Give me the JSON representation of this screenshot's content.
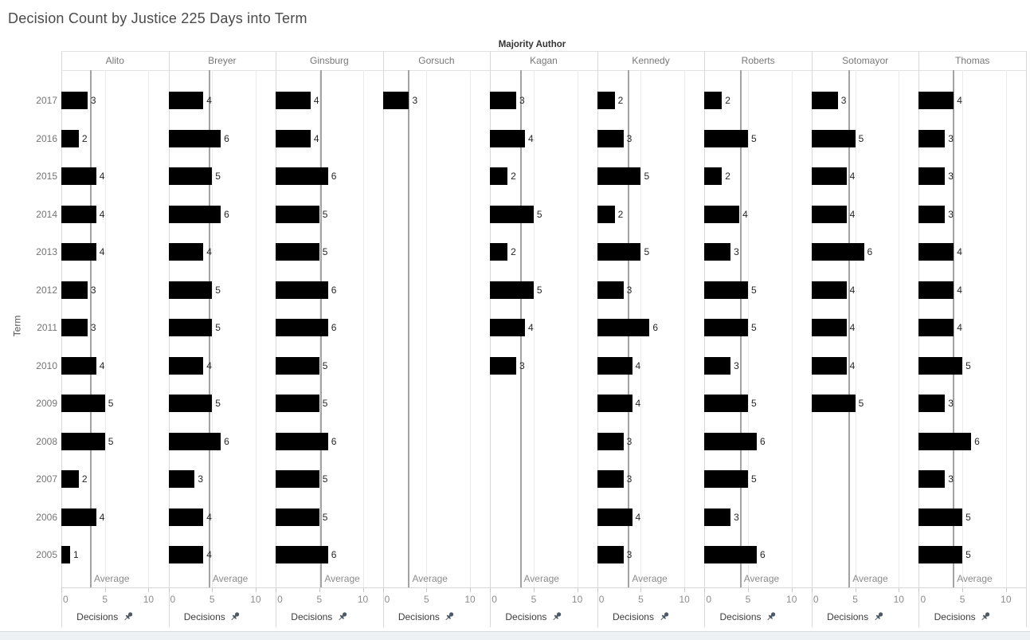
{
  "title": "Decision Count by Justice 225 Days into Term",
  "chart_data": {
    "type": "bar",
    "orientation": "horizontal",
    "title": "Decision Count by Justice 225 Days into Term",
    "column_field": "Majority Author",
    "row_field": "Term",
    "rows": [
      "2017",
      "2016",
      "2015",
      "2014",
      "2013",
      "2012",
      "2011",
      "2010",
      "2009",
      "2008",
      "2007",
      "2006",
      "2005"
    ],
    "x_axis": {
      "title": "Decisions",
      "ticks": [
        "0",
        "5",
        "10"
      ],
      "range": [
        0,
        12.3
      ],
      "pinned": true
    },
    "reference_line": {
      "label": "Average",
      "per_panel": true
    },
    "series": [
      {
        "name": "Alito",
        "average": 3.38,
        "values": [
          3,
          2,
          4,
          4,
          4,
          3,
          3,
          4,
          5,
          5,
          2,
          4,
          1
        ]
      },
      {
        "name": "Breyer",
        "average": 4.69,
        "values": [
          4,
          6,
          5,
          6,
          4,
          5,
          5,
          4,
          5,
          6,
          3,
          4,
          4
        ]
      },
      {
        "name": "Ginsburg",
        "average": 5.23,
        "values": [
          4,
          4,
          6,
          5,
          5,
          6,
          6,
          5,
          5,
          6,
          5,
          5,
          6
        ]
      },
      {
        "name": "Gorsuch",
        "average": 3.0,
        "values": [
          3,
          null,
          null,
          null,
          null,
          null,
          null,
          null,
          null,
          null,
          null,
          null,
          null
        ]
      },
      {
        "name": "Kagan",
        "average": 3.5,
        "values": [
          3,
          4,
          2,
          5,
          2,
          5,
          4,
          3,
          null,
          null,
          null,
          null,
          null
        ]
      },
      {
        "name": "Kennedy",
        "average": 3.62,
        "values": [
          2,
          3,
          5,
          2,
          5,
          3,
          6,
          4,
          4,
          3,
          3,
          4,
          3
        ]
      },
      {
        "name": "Roberts",
        "average": 4.15,
        "values": [
          2,
          5,
          2,
          4,
          3,
          5,
          5,
          3,
          5,
          6,
          5,
          3,
          6
        ]
      },
      {
        "name": "Sotomayor",
        "average": 4.33,
        "values": [
          3,
          5,
          4,
          4,
          6,
          4,
          4,
          4,
          5,
          null,
          null,
          null,
          null
        ]
      },
      {
        "name": "Thomas",
        "average": 4.0,
        "values": [
          4,
          3,
          3,
          3,
          4,
          4,
          4,
          5,
          3,
          6,
          3,
          5,
          5
        ]
      }
    ],
    "bar_color": "#000000",
    "legend": "none",
    "grid": "vertical-light"
  },
  "colors": {
    "bar": "#000000",
    "average_line": "#a3a3a3",
    "pin_icon": "#4d5a66",
    "panel_border": "#d8d8d8",
    "gridline": "#ebebeb"
  },
  "icons": {
    "pin": "pushpin-pinned-axis"
  }
}
